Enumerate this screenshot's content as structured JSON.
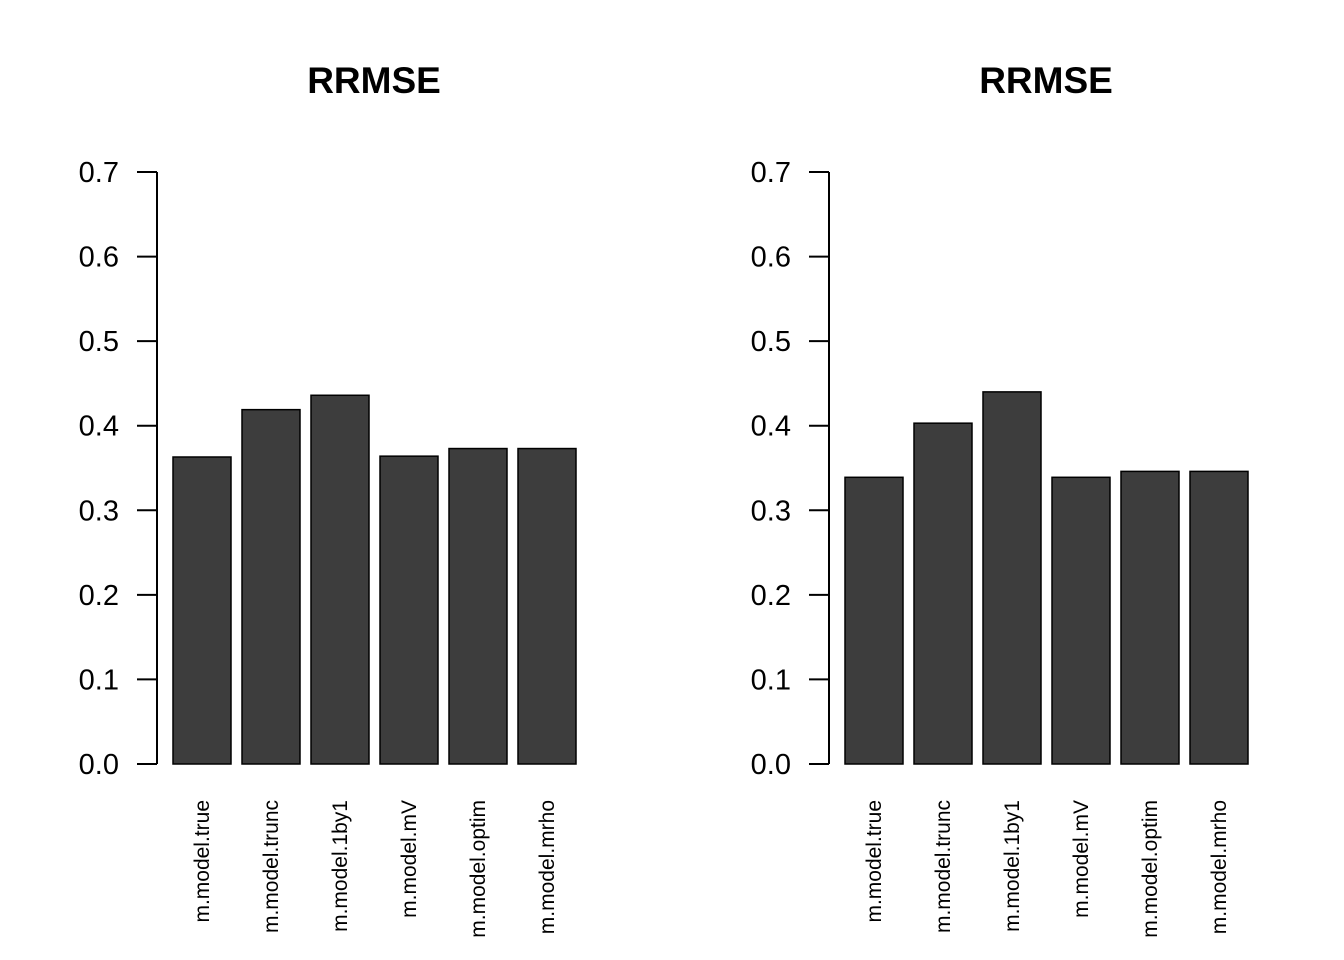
{
  "chart_data": [
    {
      "type": "bar",
      "title": "RRMSE",
      "xlabel": "",
      "ylabel": "",
      "ylim": [
        0,
        0.7
      ],
      "yticks": [
        "0.0",
        "0.1",
        "0.2",
        "0.3",
        "0.4",
        "0.5",
        "0.6",
        "0.7"
      ],
      "categories": [
        "m.model.true",
        "m.model.trunc",
        "m.model.1by1",
        "m.model.mV",
        "m.model.optim",
        "m.model.mrho"
      ],
      "values": [
        0.363,
        0.419,
        0.436,
        0.364,
        0.373,
        0.373
      ],
      "bar_color": "#3d3d3d",
      "grid": false,
      "legend": "none"
    },
    {
      "type": "bar",
      "title": "RRMSE",
      "xlabel": "",
      "ylabel": "",
      "ylim": [
        0,
        0.7
      ],
      "yticks": [
        "0.0",
        "0.1",
        "0.2",
        "0.3",
        "0.4",
        "0.5",
        "0.6",
        "0.7"
      ],
      "categories": [
        "m.model.true",
        "m.model.trunc",
        "m.model.1by1",
        "m.model.mV",
        "m.model.optim",
        "m.model.mrho"
      ],
      "values": [
        0.339,
        0.403,
        0.44,
        0.339,
        0.346,
        0.346
      ],
      "bar_color": "#3d3d3d",
      "grid": false,
      "legend": "none"
    }
  ]
}
